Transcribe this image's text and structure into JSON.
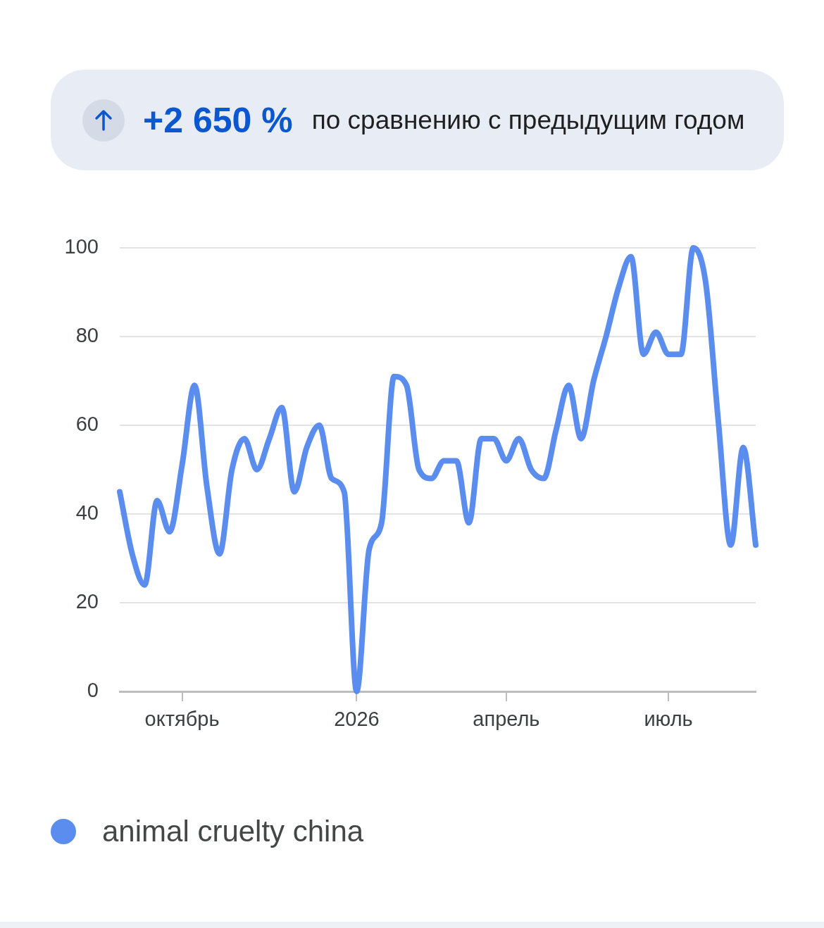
{
  "chart_data": {
    "type": "line",
    "title": "+2 650 %",
    "subtitle": "по сравнению с предыдущим годом",
    "categories": [
      null,
      null,
      null,
      null,
      null,
      "октябрь",
      null,
      null,
      null,
      null,
      null,
      null,
      null,
      null,
      null,
      null,
      null,
      null,
      null,
      "2026",
      null,
      null,
      null,
      null,
      null,
      null,
      null,
      null,
      null,
      null,
      null,
      "апрель",
      null,
      null,
      null,
      null,
      null,
      null,
      null,
      null,
      null,
      null,
      null,
      null,
      "июль",
      null,
      null,
      null,
      null,
      null,
      null,
      null
    ],
    "series": [
      {
        "name": "animal cruelty china",
        "color": "#5b8def",
        "values": [
          45,
          31,
          24,
          43,
          36,
          51,
          69,
          46,
          31,
          50,
          57,
          50,
          57,
          64,
          45,
          55,
          60,
          48,
          45,
          0,
          32,
          38,
          71,
          69,
          50,
          48,
          52,
          52,
          38,
          57,
          57,
          52,
          57,
          50,
          48,
          59,
          69,
          57,
          70,
          80,
          91,
          98,
          76,
          81,
          76,
          76,
          100,
          92,
          61,
          33,
          55,
          33
        ]
      }
    ],
    "ylim": [
      0,
      100
    ],
    "yticks": [
      0,
      20,
      40,
      60,
      80,
      100
    ],
    "grid": "y",
    "legend": "bottom left"
  }
}
